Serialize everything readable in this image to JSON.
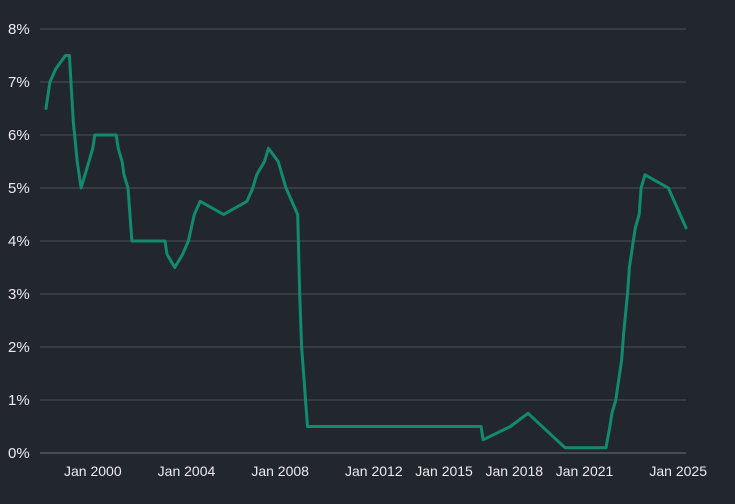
{
  "colors": {
    "background": "#22272e",
    "grid": "#4a5058",
    "text": "#e9ecef",
    "series": "#128a6e"
  },
  "chart_data": {
    "type": "line",
    "title": "",
    "xlabel": "",
    "ylabel": "",
    "xlim": [
      "1998-01",
      "2025-05"
    ],
    "ylim": [
      0,
      8
    ],
    "grid": true,
    "legend": "none",
    "y_ticks": [
      {
        "value": 0,
        "label": "0%"
      },
      {
        "value": 1,
        "label": "1%"
      },
      {
        "value": 2,
        "label": "2%"
      },
      {
        "value": 3,
        "label": "3%"
      },
      {
        "value": 4,
        "label": "4%"
      },
      {
        "value": 5,
        "label": "5%"
      },
      {
        "value": 6,
        "label": "6%"
      },
      {
        "value": 7,
        "label": "7%"
      },
      {
        "value": 8,
        "label": "8%"
      }
    ],
    "x_ticks": [
      {
        "date": "2000-01",
        "label": "Jan 2000"
      },
      {
        "date": "2004-01",
        "label": "Jan 2004"
      },
      {
        "date": "2008-01",
        "label": "Jan 2008"
      },
      {
        "date": "2012-01",
        "label": "Jan 2012"
      },
      {
        "date": "2015-01",
        "label": "Jan 2015"
      },
      {
        "date": "2018-01",
        "label": "Jan 2018"
      },
      {
        "date": "2021-01",
        "label": "Jan 2021"
      },
      {
        "date": "2025-01",
        "label": "Jan 2025"
      }
    ],
    "series": [
      {
        "color": "#128a6e",
        "points": [
          [
            "1998-01",
            6.5
          ],
          [
            "1998-03",
            7.0
          ],
          [
            "1998-06",
            7.25
          ],
          [
            "1998-11",
            7.5
          ],
          [
            "1999-01",
            7.5
          ],
          [
            "1999-03",
            6.25
          ],
          [
            "1999-05",
            5.5
          ],
          [
            "1999-06",
            5.25
          ],
          [
            "1999-07",
            5.0
          ],
          [
            "1999-09",
            5.25
          ],
          [
            "1999-11",
            5.5
          ],
          [
            "2000-01",
            5.75
          ],
          [
            "2000-02",
            6.0
          ],
          [
            "2001-01",
            6.0
          ],
          [
            "2001-02",
            5.75
          ],
          [
            "2001-04",
            5.5
          ],
          [
            "2001-05",
            5.25
          ],
          [
            "2001-07",
            5.0
          ],
          [
            "2001-09",
            4.0
          ],
          [
            "2003-02",
            4.0
          ],
          [
            "2003-03",
            3.75
          ],
          [
            "2003-07",
            3.5
          ],
          [
            "2003-11",
            3.75
          ],
          [
            "2004-02",
            4.0
          ],
          [
            "2004-05",
            4.5
          ],
          [
            "2004-08",
            4.75
          ],
          [
            "2005-08",
            4.5
          ],
          [
            "2006-08",
            4.75
          ],
          [
            "2006-11",
            5.0
          ],
          [
            "2007-01",
            5.25
          ],
          [
            "2007-05",
            5.5
          ],
          [
            "2007-07",
            5.75
          ],
          [
            "2007-12",
            5.5
          ],
          [
            "2008-02",
            5.25
          ],
          [
            "2008-04",
            5.0
          ],
          [
            "2008-10",
            4.5
          ],
          [
            "2008-11",
            3.0
          ],
          [
            "2008-12",
            2.0
          ],
          [
            "2009-01",
            1.5
          ],
          [
            "2009-02",
            1.0
          ],
          [
            "2009-03",
            0.5
          ],
          [
            "2016-08",
            0.5
          ],
          [
            "2016-09",
            0.25
          ],
          [
            "2017-11",
            0.5
          ],
          [
            "2018-08",
            0.75
          ],
          [
            "2020-03",
            0.1
          ],
          [
            "2021-12",
            0.1
          ],
          [
            "2022-02",
            0.5
          ],
          [
            "2022-03",
            0.75
          ],
          [
            "2022-05",
            1.0
          ],
          [
            "2022-06",
            1.25
          ],
          [
            "2022-08",
            1.75
          ],
          [
            "2022-09",
            2.25
          ],
          [
            "2022-11",
            3.0
          ],
          [
            "2022-12",
            3.5
          ],
          [
            "2023-02",
            4.0
          ],
          [
            "2023-03",
            4.25
          ],
          [
            "2023-05",
            4.5
          ],
          [
            "2023-06",
            5.0
          ],
          [
            "2023-08",
            5.25
          ],
          [
            "2024-08",
            5.0
          ],
          [
            "2024-11",
            4.75
          ],
          [
            "2025-02",
            4.5
          ],
          [
            "2025-05",
            4.25
          ]
        ]
      }
    ]
  }
}
